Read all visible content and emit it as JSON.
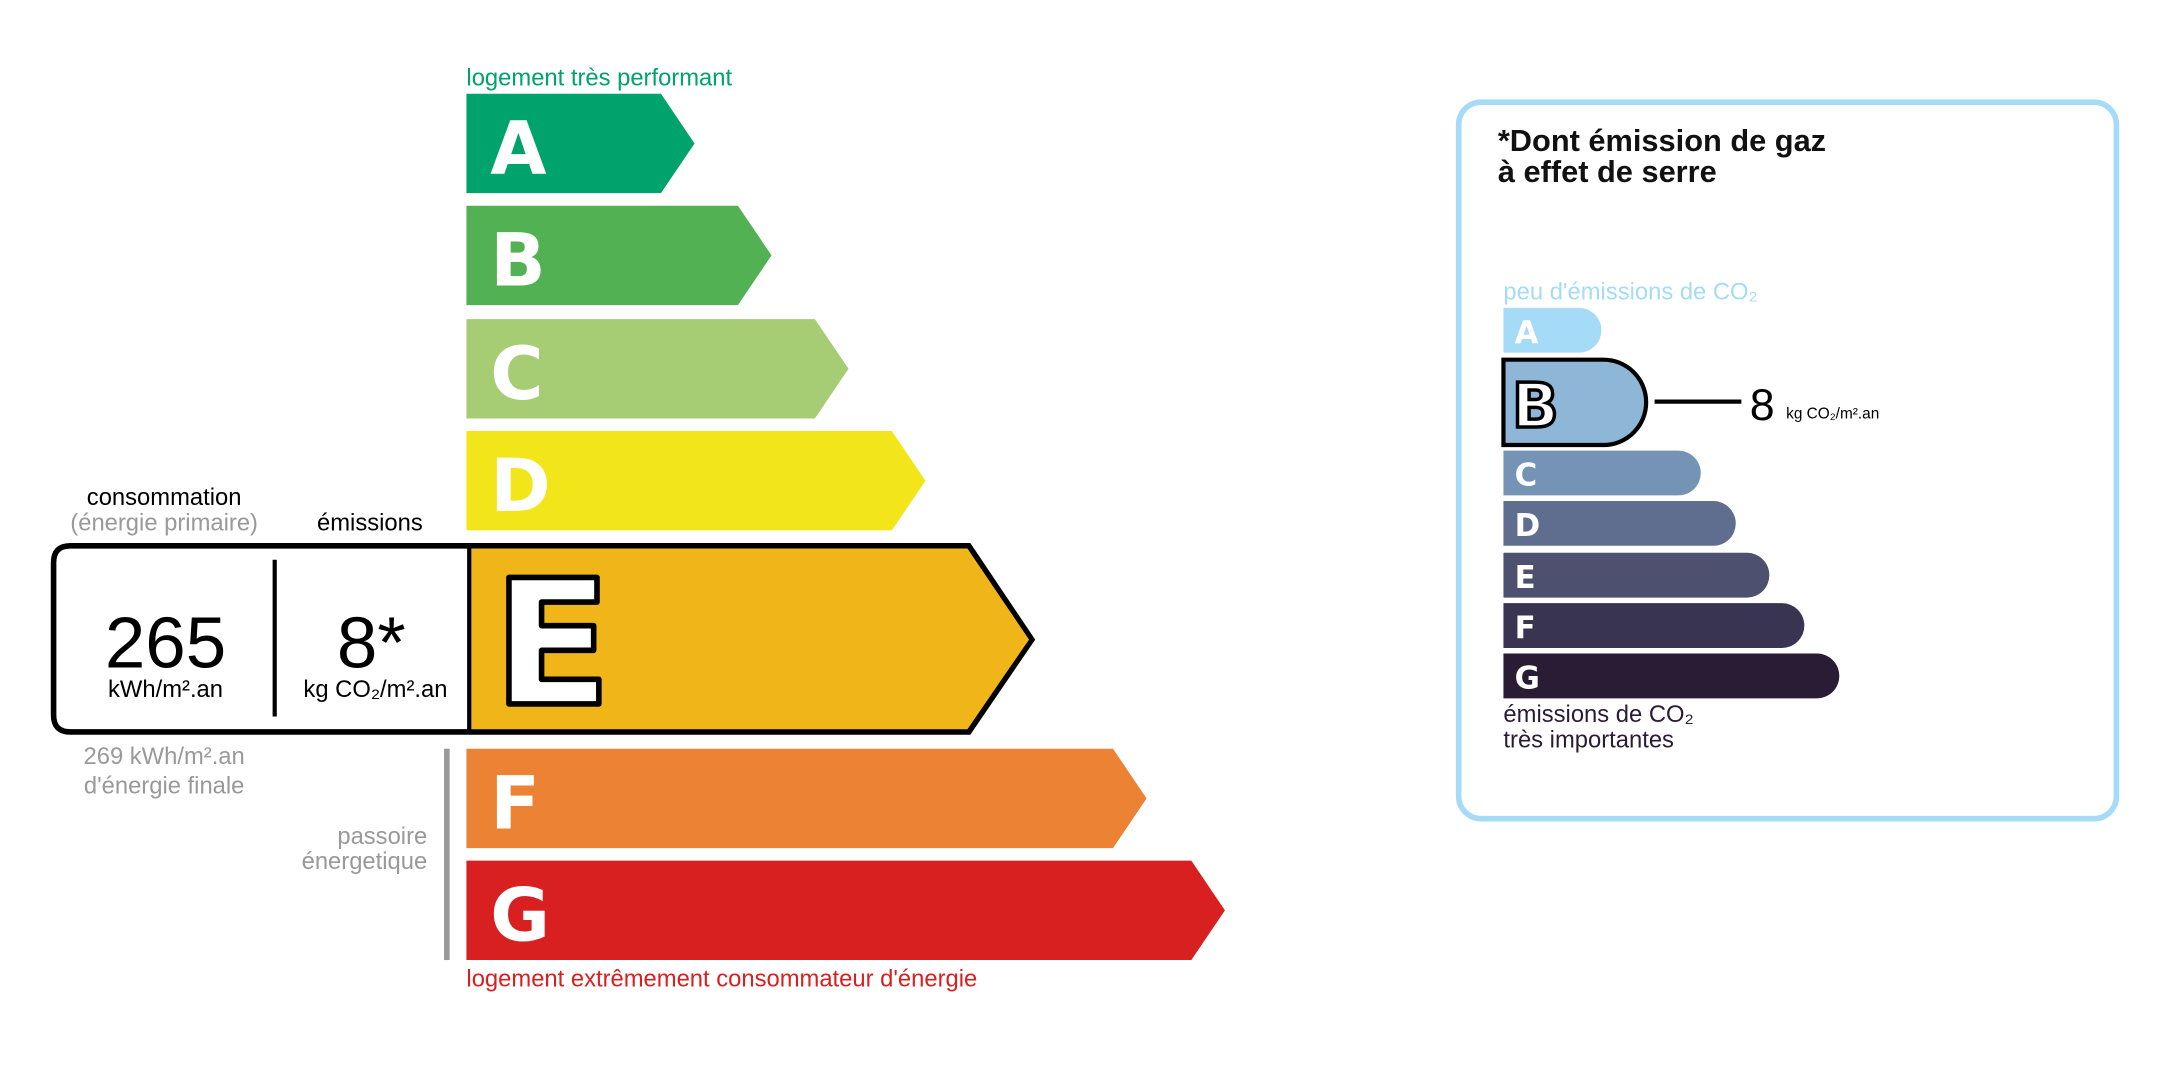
{
  "energy": {
    "top_label": "logement très performant",
    "bottom_label": "logement extrêmement consommateur d'énergie",
    "classes": [
      {
        "letter": "A",
        "color": "#00a36b"
      },
      {
        "letter": "B",
        "color": "#52b153"
      },
      {
        "letter": "C",
        "color": "#a6cc74"
      },
      {
        "letter": "D",
        "color": "#f2e61b"
      },
      {
        "letter": "E",
        "color": "#f0b519"
      },
      {
        "letter": "F",
        "color": "#eb8234"
      },
      {
        "letter": "G",
        "color": "#d7201f"
      }
    ],
    "current_class": "E",
    "consumption_label": "consommation",
    "consumption_sub": "(énergie primaire)",
    "emissions_label": "émissions",
    "consumption_value": "265",
    "consumption_unit": "kWh/m².an",
    "emissions_value": "8*",
    "emissions_unit": "kg CO₂/m².an",
    "final_energy_value": "269 kWh/m².an",
    "final_energy_label": "d'énergie finale",
    "passoire_line1": "passoire",
    "passoire_line2": "énergetique"
  },
  "ges": {
    "title_line1": "*Dont émission de gaz",
    "title_line2": "à effet de serre",
    "top_label": "peu d'émissions de CO₂",
    "bottom_line1": "émissions de CO₂",
    "bottom_line2": "très importantes",
    "classes": [
      {
        "letter": "A",
        "color": "#a6dbf7"
      },
      {
        "letter": "B",
        "color": "#8eb6d6"
      },
      {
        "letter": "C",
        "color": "#7593b5"
      },
      {
        "letter": "D",
        "color": "#5f6e8f"
      },
      {
        "letter": "E",
        "color": "#4d506e"
      },
      {
        "letter": "F",
        "color": "#393451"
      },
      {
        "letter": "G",
        "color": "#2a1c35"
      }
    ],
    "current_class": "B",
    "value": "8",
    "unit": "kg CO₂/m².an",
    "border_color": "#a6dbf7"
  }
}
